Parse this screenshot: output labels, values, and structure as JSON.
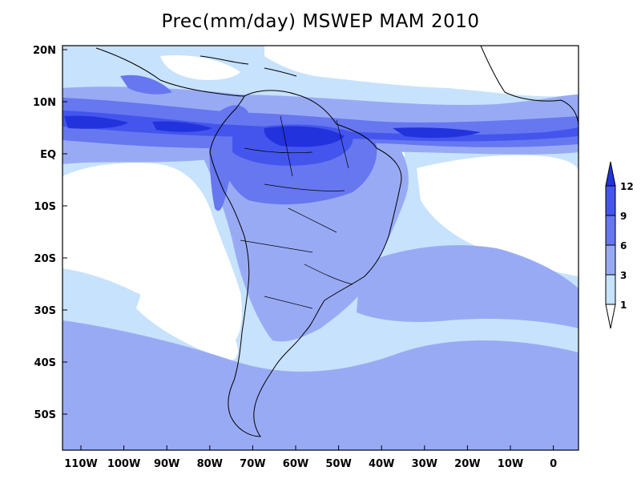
{
  "title": "Prec(mm/day) MSWEP MAM 2010",
  "lat_labels": [
    "20N",
    "10N",
    "EQ",
    "10S",
    "20S",
    "30S",
    "40S",
    "50S"
  ],
  "lon_labels": [
    "110W",
    "100W",
    "90W",
    "80W",
    "70W",
    "60W",
    "50W",
    "40W",
    "30W",
    "20W",
    "10W",
    "0"
  ],
  "colorbar": {
    "labels": [
      "12",
      "9",
      "6",
      "3",
      "1"
    ],
    "colors": {
      "above_12": "#2233dd",
      "9_12": "#4455ee",
      "6_9": "#6677f0",
      "3_6": "#99aaf5",
      "1_3": "#c7e2fc",
      "below_1": "#ffffff"
    }
  },
  "chart_data": {
    "type": "heatmap",
    "title": "Prec(mm/day) MSWEP MAM 2010",
    "variable": "Prec",
    "units": "mm/day",
    "dataset": "MSWEP",
    "season": "MAM",
    "year": 2010,
    "lon_range": [
      -115,
      7
    ],
    "lat_range": [
      -58,
      22
    ],
    "levels": [
      1,
      3,
      6,
      9,
      12
    ]
  }
}
